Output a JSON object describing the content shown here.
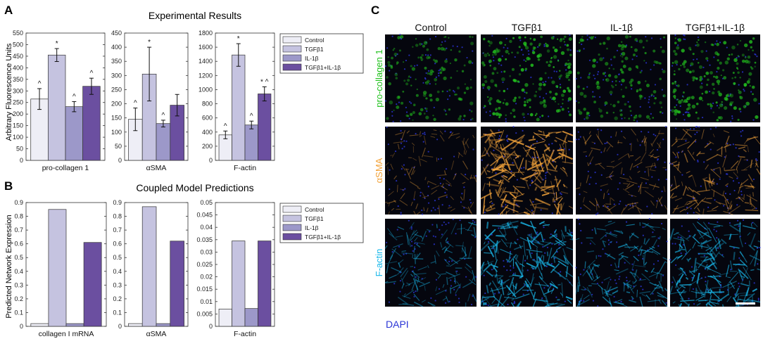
{
  "panels": {
    "A": {
      "letter": "A",
      "title": "Experimental Results",
      "ylabel": "Arbitrary Fluorescence Units"
    },
    "B": {
      "letter": "B",
      "title": "Coupled Model Predictions",
      "ylabel": "Predicted Network Expression"
    },
    "C": {
      "letter": "C"
    }
  },
  "legend": [
    "Control",
    "TGFβ1",
    "IL-1β",
    "TGFβ1+IL-1β"
  ],
  "colors": {
    "series": [
      "#eeeef6",
      "#c5c3e0",
      "#9c98c9",
      "#6b4fa0"
    ],
    "green": "#22c21e",
    "orange": "#f3a33a",
    "cyan": "#19b8ea",
    "dapi": "#2a35d6"
  },
  "chart_data": [
    {
      "type": "bar",
      "panel": "A",
      "xlabel": "pro-collagen 1",
      "categories": [
        "Control",
        "TGFβ1",
        "IL-1β",
        "TGFβ1+IL-1β"
      ],
      "values": [
        265,
        455,
        232,
        320
      ],
      "errors": [
        45,
        28,
        22,
        35
      ],
      "marks": [
        "^",
        "*",
        "^",
        "^"
      ],
      "ylim": [
        0,
        550
      ],
      "yticks": [
        "0",
        "50",
        "100",
        "150",
        "200",
        "250",
        "300",
        "350",
        "400",
        "450",
        "500",
        "550"
      ]
    },
    {
      "type": "bar",
      "panel": "A",
      "xlabel": "αSMA",
      "categories": [
        "Control",
        "TGFβ1",
        "IL-1β",
        "TGFβ1+IL-1β"
      ],
      "values": [
        145,
        305,
        130,
        195
      ],
      "errors": [
        40,
        95,
        12,
        38
      ],
      "marks": [
        "^",
        "*",
        "^",
        ""
      ],
      "ylim": [
        0,
        450
      ],
      "yticks": [
        "0",
        "50",
        "100",
        "150",
        "200",
        "250",
        "300",
        "350",
        "400",
        "450"
      ]
    },
    {
      "type": "bar",
      "panel": "A",
      "xlabel": "F-actin",
      "categories": [
        "Control",
        "TGFβ1",
        "IL-1β",
        "TGFβ1+IL-1β"
      ],
      "values": [
        360,
        1490,
        500,
        940
      ],
      "errors": [
        55,
        160,
        55,
        100
      ],
      "marks": [
        "^",
        "*",
        "^",
        "* ^"
      ],
      "ylim": [
        0,
        1800
      ],
      "yticks": [
        "0",
        "200",
        "400",
        "600",
        "800",
        "1000",
        "1200",
        "1400",
        "1600",
        "1800"
      ]
    },
    {
      "type": "bar",
      "panel": "B",
      "xlabel": "collagen I mRNA",
      "categories": [
        "Control",
        "TGFβ1",
        "IL-1β",
        "TGFβ1+IL-1β"
      ],
      "values": [
        0.02,
        0.85,
        0.02,
        0.61
      ],
      "ylim": [
        0,
        0.9
      ],
      "yticks": [
        "0",
        "0.1",
        "0.2",
        "0.3",
        "0.4",
        "0.5",
        "0.6",
        "0.7",
        "0.8",
        "0.9"
      ]
    },
    {
      "type": "bar",
      "panel": "B",
      "xlabel": "αSMA",
      "categories": [
        "Control",
        "TGFβ1",
        "IL-1β",
        "TGFβ1+IL-1β"
      ],
      "values": [
        0.02,
        0.87,
        0.02,
        0.62
      ],
      "ylim": [
        0,
        0.9
      ],
      "yticks": [
        "0",
        "0.1",
        "0.2",
        "0.3",
        "0.4",
        "0.5",
        "0.6",
        "0.7",
        "0.8",
        "0.9"
      ]
    },
    {
      "type": "bar",
      "panel": "B",
      "xlabel": "F-actin",
      "categories": [
        "Control",
        "TGFβ1",
        "IL-1β",
        "TGFβ1+IL-1β"
      ],
      "values": [
        0.007,
        0.0345,
        0.0072,
        0.0345
      ],
      "ylim": [
        0,
        0.05
      ],
      "yticks": [
        "0",
        "0.005",
        "0.01",
        "0.015",
        "0.02",
        "0.025",
        "0.03",
        "0.035",
        "0.04",
        "0.045",
        "0.05"
      ]
    }
  ],
  "microscopy": {
    "columns": [
      "Control",
      "TGFβ1",
      "IL-1β",
      "TGFβ1+IL-1β"
    ],
    "rows": [
      {
        "label": "pro-collagen 1",
        "color": "#22c21e",
        "intensity": [
          0.45,
          0.85,
          0.5,
          0.75
        ]
      },
      {
        "label": "αSMA",
        "color": "#f3a33a",
        "intensity": [
          0.25,
          0.95,
          0.3,
          0.5
        ]
      },
      {
        "label": "F-actin",
        "color": "#19b8ea",
        "intensity": [
          0.45,
          0.9,
          0.55,
          0.8
        ]
      }
    ],
    "dapi_label": "DAPI"
  }
}
